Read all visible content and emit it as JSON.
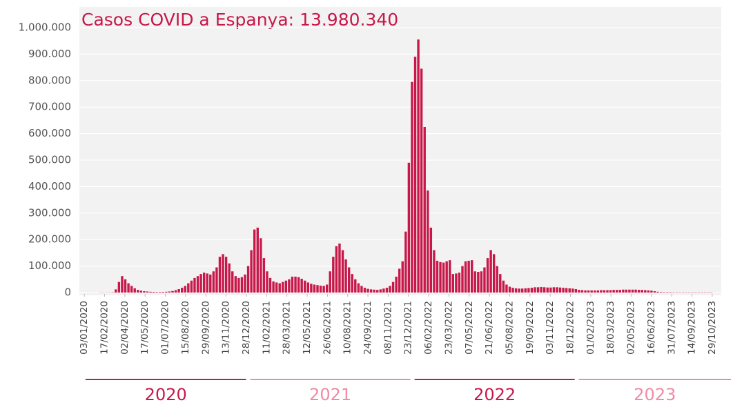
{
  "chart_data": {
    "type": "bar",
    "title": "Casos COVID a Espanya: 13.980.340",
    "color": "#c8184a",
    "grid": true,
    "x": [
      "2020-01-03",
      "2020-01-10",
      "2020-01-17",
      "2020-01-24",
      "2020-01-31",
      "2020-02-07",
      "2020-02-14",
      "2020-02-21",
      "2020-02-28",
      "2020-03-06",
      "2020-03-13",
      "2020-03-20",
      "2020-03-27",
      "2020-04-03",
      "2020-04-10",
      "2020-04-17",
      "2020-04-24",
      "2020-05-01",
      "2020-05-08",
      "2020-05-15",
      "2020-05-22",
      "2020-05-29",
      "2020-06-05",
      "2020-06-12",
      "2020-06-19",
      "2020-06-26",
      "2020-07-03",
      "2020-07-10",
      "2020-07-17",
      "2020-07-24",
      "2020-07-31",
      "2020-08-07",
      "2020-08-14",
      "2020-08-21",
      "2020-08-28",
      "2020-09-04",
      "2020-09-11",
      "2020-09-18",
      "2020-09-25",
      "2020-10-02",
      "2020-10-09",
      "2020-10-16",
      "2020-10-23",
      "2020-10-30",
      "2020-11-06",
      "2020-11-13",
      "2020-11-20",
      "2020-11-27",
      "2020-12-04",
      "2020-12-11",
      "2020-12-18",
      "2020-12-25",
      "2021-01-01",
      "2021-01-08",
      "2021-01-15",
      "2021-01-22",
      "2021-01-29",
      "2021-02-05",
      "2021-02-12",
      "2021-02-19",
      "2021-02-26",
      "2021-03-05",
      "2021-03-12",
      "2021-03-19",
      "2021-03-26",
      "2021-04-02",
      "2021-04-09",
      "2021-04-16",
      "2021-04-23",
      "2021-04-30",
      "2021-05-07",
      "2021-05-14",
      "2021-05-21",
      "2021-05-28",
      "2021-06-04",
      "2021-06-11",
      "2021-06-18",
      "2021-06-25",
      "2021-07-02",
      "2021-07-09",
      "2021-07-16",
      "2021-07-23",
      "2021-07-30",
      "2021-08-06",
      "2021-08-13",
      "2021-08-20",
      "2021-08-27",
      "2021-09-03",
      "2021-09-10",
      "2021-09-17",
      "2021-09-24",
      "2021-10-01",
      "2021-10-08",
      "2021-10-15",
      "2021-10-22",
      "2021-10-29",
      "2021-11-05",
      "2021-11-12",
      "2021-11-19",
      "2021-11-26",
      "2021-12-03",
      "2021-12-10",
      "2021-12-17",
      "2021-12-24",
      "2021-12-31",
      "2022-01-07",
      "2022-01-14",
      "2022-01-21",
      "2022-01-28",
      "2022-02-04",
      "2022-02-11",
      "2022-02-18",
      "2022-02-25",
      "2022-03-04",
      "2022-03-11",
      "2022-03-18",
      "2022-03-25",
      "2022-04-01",
      "2022-04-08",
      "2022-04-15",
      "2022-04-22",
      "2022-04-29",
      "2022-05-06",
      "2022-05-13",
      "2022-05-20",
      "2022-05-27",
      "2022-06-03",
      "2022-06-10",
      "2022-06-17",
      "2022-06-24",
      "2022-07-01",
      "2022-07-08",
      "2022-07-15",
      "2022-07-22",
      "2022-07-29",
      "2022-08-05",
      "2022-08-12",
      "2022-08-19",
      "2022-08-26",
      "2022-09-02",
      "2022-09-09",
      "2022-09-16",
      "2022-09-23",
      "2022-09-30",
      "2022-10-07",
      "2022-10-14",
      "2022-10-21",
      "2022-10-28",
      "2022-11-04",
      "2022-11-11",
      "2022-11-18",
      "2022-11-25",
      "2022-12-02",
      "2022-12-09",
      "2022-12-16",
      "2022-12-23",
      "2022-12-30",
      "2023-01-06",
      "2023-01-13",
      "2023-01-20",
      "2023-01-27",
      "2023-02-03",
      "2023-02-10",
      "2023-02-17",
      "2023-02-24",
      "2023-03-03",
      "2023-03-10",
      "2023-03-17",
      "2023-03-24",
      "2023-03-31",
      "2023-04-07",
      "2023-04-14",
      "2023-04-21",
      "2023-04-28",
      "2023-05-05",
      "2023-05-12",
      "2023-05-19",
      "2023-05-26",
      "2023-06-02",
      "2023-06-09",
      "2023-06-16",
      "2023-06-23",
      "2023-06-30",
      "2023-07-07",
      "2023-07-14",
      "2023-07-21",
      "2023-07-28",
      "2023-08-04",
      "2023-08-11",
      "2023-08-18",
      "2023-08-25",
      "2023-09-01",
      "2023-09-08",
      "2023-09-15",
      "2023-09-22",
      "2023-09-29",
      "2023-10-06",
      "2023-10-13",
      "2023-10-20",
      "2023-10-27"
    ],
    "values": [
      0,
      0,
      0,
      0,
      0,
      500,
      500,
      500,
      500,
      1000,
      12000,
      40000,
      62000,
      50000,
      35000,
      25000,
      16000,
      10000,
      7000,
      5000,
      4000,
      3000,
      2500,
      2000,
      2000,
      2500,
      3000,
      4000,
      6000,
      9000,
      13000,
      18000,
      25000,
      35000,
      45000,
      55000,
      62000,
      70000,
      75000,
      72000,
      68000,
      80000,
      95000,
      135000,
      145000,
      135000,
      110000,
      80000,
      62000,
      55000,
      58000,
      68000,
      100000,
      160000,
      238000,
      245000,
      205000,
      130000,
      80000,
      55000,
      42000,
      38000,
      35000,
      40000,
      45000,
      50000,
      60000,
      60000,
      58000,
      52000,
      45000,
      38000,
      33000,
      30000,
      28000,
      26000,
      25000,
      30000,
      80000,
      135000,
      175000,
      185000,
      160000,
      125000,
      95000,
      70000,
      50000,
      35000,
      25000,
      18000,
      14000,
      12000,
      11000,
      10000,
      12000,
      15000,
      18000,
      25000,
      40000,
      60000,
      90000,
      118000,
      230000,
      490000,
      795000,
      890000,
      955000,
      845000,
      625000,
      385000,
      245000,
      160000,
      120000,
      115000,
      113000,
      118000,
      122000,
      70000,
      72000,
      75000,
      100000,
      118000,
      120000,
      122000,
      80000,
      78000,
      80000,
      95000,
      130000,
      160000,
      145000,
      100000,
      70000,
      45000,
      30000,
      22000,
      18000,
      16000,
      15000,
      15000,
      16000,
      17000,
      18000,
      20000,
      20000,
      21000,
      20000,
      19000,
      19000,
      20000,
      20000,
      19000,
      18000,
      17000,
      16000,
      15000,
      13000,
      10000,
      9000,
      8000,
      8000,
      8000,
      8000,
      8000,
      9000,
      9000,
      9000,
      9000,
      10000,
      10000,
      10000,
      11000,
      11000,
      11000,
      11000,
      11000,
      10000,
      10000,
      9000,
      8000,
      7000,
      5000,
      3000,
      2000,
      1500,
      1500,
      1500,
      1000,
      1000,
      1000,
      1000,
      1000,
      1000,
      1000,
      1000,
      1000,
      1000,
      1000,
      1000,
      1000
    ],
    "xlim": [
      "2019-12-23",
      "2023-11-18"
    ],
    "xticks": [
      {
        "value": "2020-01-03",
        "label": "03/01/2020"
      },
      {
        "value": "2020-02-17",
        "label": "17/02/2020"
      },
      {
        "value": "2020-04-02",
        "label": "02/04/2020"
      },
      {
        "value": "2020-05-17",
        "label": "17/05/2020"
      },
      {
        "value": "2020-07-01",
        "label": "01/07/2020"
      },
      {
        "value": "2020-08-15",
        "label": "15/08/2020"
      },
      {
        "value": "2020-09-29",
        "label": "29/09/2020"
      },
      {
        "value": "2020-11-13",
        "label": "13/11/2020"
      },
      {
        "value": "2020-12-28",
        "label": "28/12/2020"
      },
      {
        "value": "2021-02-11",
        "label": "11/02/2021"
      },
      {
        "value": "2021-03-28",
        "label": "28/03/2021"
      },
      {
        "value": "2021-05-12",
        "label": "12/05/2021"
      },
      {
        "value": "2021-06-26",
        "label": "26/06/2021"
      },
      {
        "value": "2021-08-10",
        "label": "10/08/2021"
      },
      {
        "value": "2021-09-24",
        "label": "24/09/2021"
      },
      {
        "value": "2021-11-08",
        "label": "08/11/2021"
      },
      {
        "value": "2021-12-23",
        "label": "23/12/2021"
      },
      {
        "value": "2022-02-06",
        "label": "06/02/2022"
      },
      {
        "value": "2022-03-23",
        "label": "23/03/2022"
      },
      {
        "value": "2022-05-07",
        "label": "07/05/2022"
      },
      {
        "value": "2022-06-21",
        "label": "21/06/2022"
      },
      {
        "value": "2022-08-05",
        "label": "05/08/2022"
      },
      {
        "value": "2022-09-19",
        "label": "19/09/2022"
      },
      {
        "value": "2022-11-03",
        "label": "03/11/2022"
      },
      {
        "value": "2022-12-18",
        "label": "18/12/2022"
      },
      {
        "value": "2023-02-01",
        "label": "01/02/2023"
      },
      {
        "value": "2023-03-18",
        "label": "18/03/2023"
      },
      {
        "value": "2023-05-02",
        "label": "02/05/2023"
      },
      {
        "value": "2023-06-16",
        "label": "16/06/2023"
      },
      {
        "value": "2023-07-31",
        "label": "31/07/2023"
      },
      {
        "value": "2023-09-14",
        "label": "14/09/2023"
      },
      {
        "value": "2023-10-29",
        "label": "29/10/2023"
      }
    ],
    "ylim": [
      0,
      1000000
    ],
    "yticks": [
      0,
      {
        "value": 100000,
        "label": "100.000"
      },
      {
        "value": 200000,
        "label": "200.000"
      },
      {
        "value": 300000,
        "label": "300.000"
      },
      {
        "value": 400000,
        "label": "400.000"
      },
      {
        "value": 500000,
        "label": "500.000"
      },
      {
        "value": 600000,
        "label": "600.000"
      },
      {
        "value": 700000,
        "label": "700.000"
      },
      {
        "value": 800000,
        "label": "800.000"
      },
      {
        "value": 900000,
        "label": "900.000"
      },
      {
        "value": 1000000,
        "label": "1.000.000"
      }
    ],
    "years": [
      {
        "label": "2020",
        "color": "#c8184a"
      },
      {
        "label": "2021",
        "color": "#f08aa6"
      },
      {
        "label": "2022",
        "color": "#c8184a"
      },
      {
        "label": "2023",
        "color": "#f08aa6"
      }
    ]
  }
}
